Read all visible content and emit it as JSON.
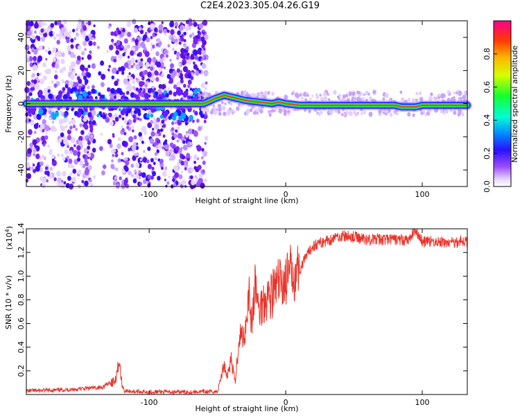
{
  "title": "C2E4.2023.305.04.26.G19",
  "chart_data": [
    {
      "type": "heatmap",
      "xlabel": "Height of straight line (km)",
      "ylabel": "Frequency (Hz)",
      "xlim": [
        -190,
        133
      ],
      "ylim": [
        -50,
        50
      ],
      "xticks": [
        -100,
        0,
        100
      ],
      "yticks": [
        -40,
        -20,
        0,
        20,
        40
      ],
      "colorbar": {
        "label": "Normalized spectral amplitude",
        "range": [
          0.0,
          1.0
        ],
        "ticks": [
          0.0,
          0.2,
          0.4,
          0.6,
          0.8
        ],
        "colormap": "rainbow"
      },
      "trace": {
        "x": [
          -190,
          -150,
          -133,
          -120,
          -60,
          -52,
          -45,
          -40,
          -30,
          -20,
          -10,
          -5,
          0,
          10,
          30,
          60,
          80,
          85,
          95,
          100,
          120,
          133
        ],
        "y": [
          0,
          0,
          0,
          0,
          0,
          3,
          5,
          4,
          2,
          1,
          0,
          1,
          0,
          -1,
          -1,
          -1,
          -1,
          -2,
          -2,
          -1,
          -1,
          -1
        ]
      }
    },
    {
      "type": "line",
      "xlabel": "Height of straight line (km)",
      "ylabel": "SNR (10 * v/v)",
      "yscale_note": "(x10",
      "yscale_exp": "4",
      "yscale_close": ")",
      "xlim": [
        -190,
        133
      ],
      "ylim": [
        0,
        14000
      ],
      "xticks": [
        -100,
        0,
        100
      ],
      "yticks": [
        2000,
        4000,
        6000,
        8000,
        10000,
        12000,
        14000
      ],
      "ytick_labels": [
        "0.2",
        "0.4",
        "0.6",
        "0.8",
        "1.0",
        "1.2",
        "1.4"
      ],
      "color": "#e8332a",
      "series": [
        {
          "x": [
            -190,
            -160,
            -135,
            -125,
            -122,
            -120,
            -118,
            -110,
            -80,
            -50,
            -45,
            -43,
            -40,
            -37,
            -34,
            -30,
            -27,
            -25,
            -22,
            -20,
            -15,
            -10,
            -5,
            0,
            5,
            10,
            15,
            20,
            30,
            40,
            50,
            60,
            80,
            90,
            95,
            100,
            110,
            120,
            130,
            133
          ],
          "y": [
            300,
            400,
            600,
            1200,
            2800,
            800,
            300,
            250,
            200,
            250,
            2600,
            1500,
            3000,
            1000,
            5000,
            5000,
            9000,
            6000,
            9500,
            7000,
            8200,
            8500,
            9400,
            9600,
            10500,
            10500,
            11600,
            12600,
            13000,
            13400,
            13300,
            13100,
            13100,
            13000,
            14000,
            12900,
            12900,
            12800,
            13000,
            12800
          ]
        }
      ]
    }
  ]
}
